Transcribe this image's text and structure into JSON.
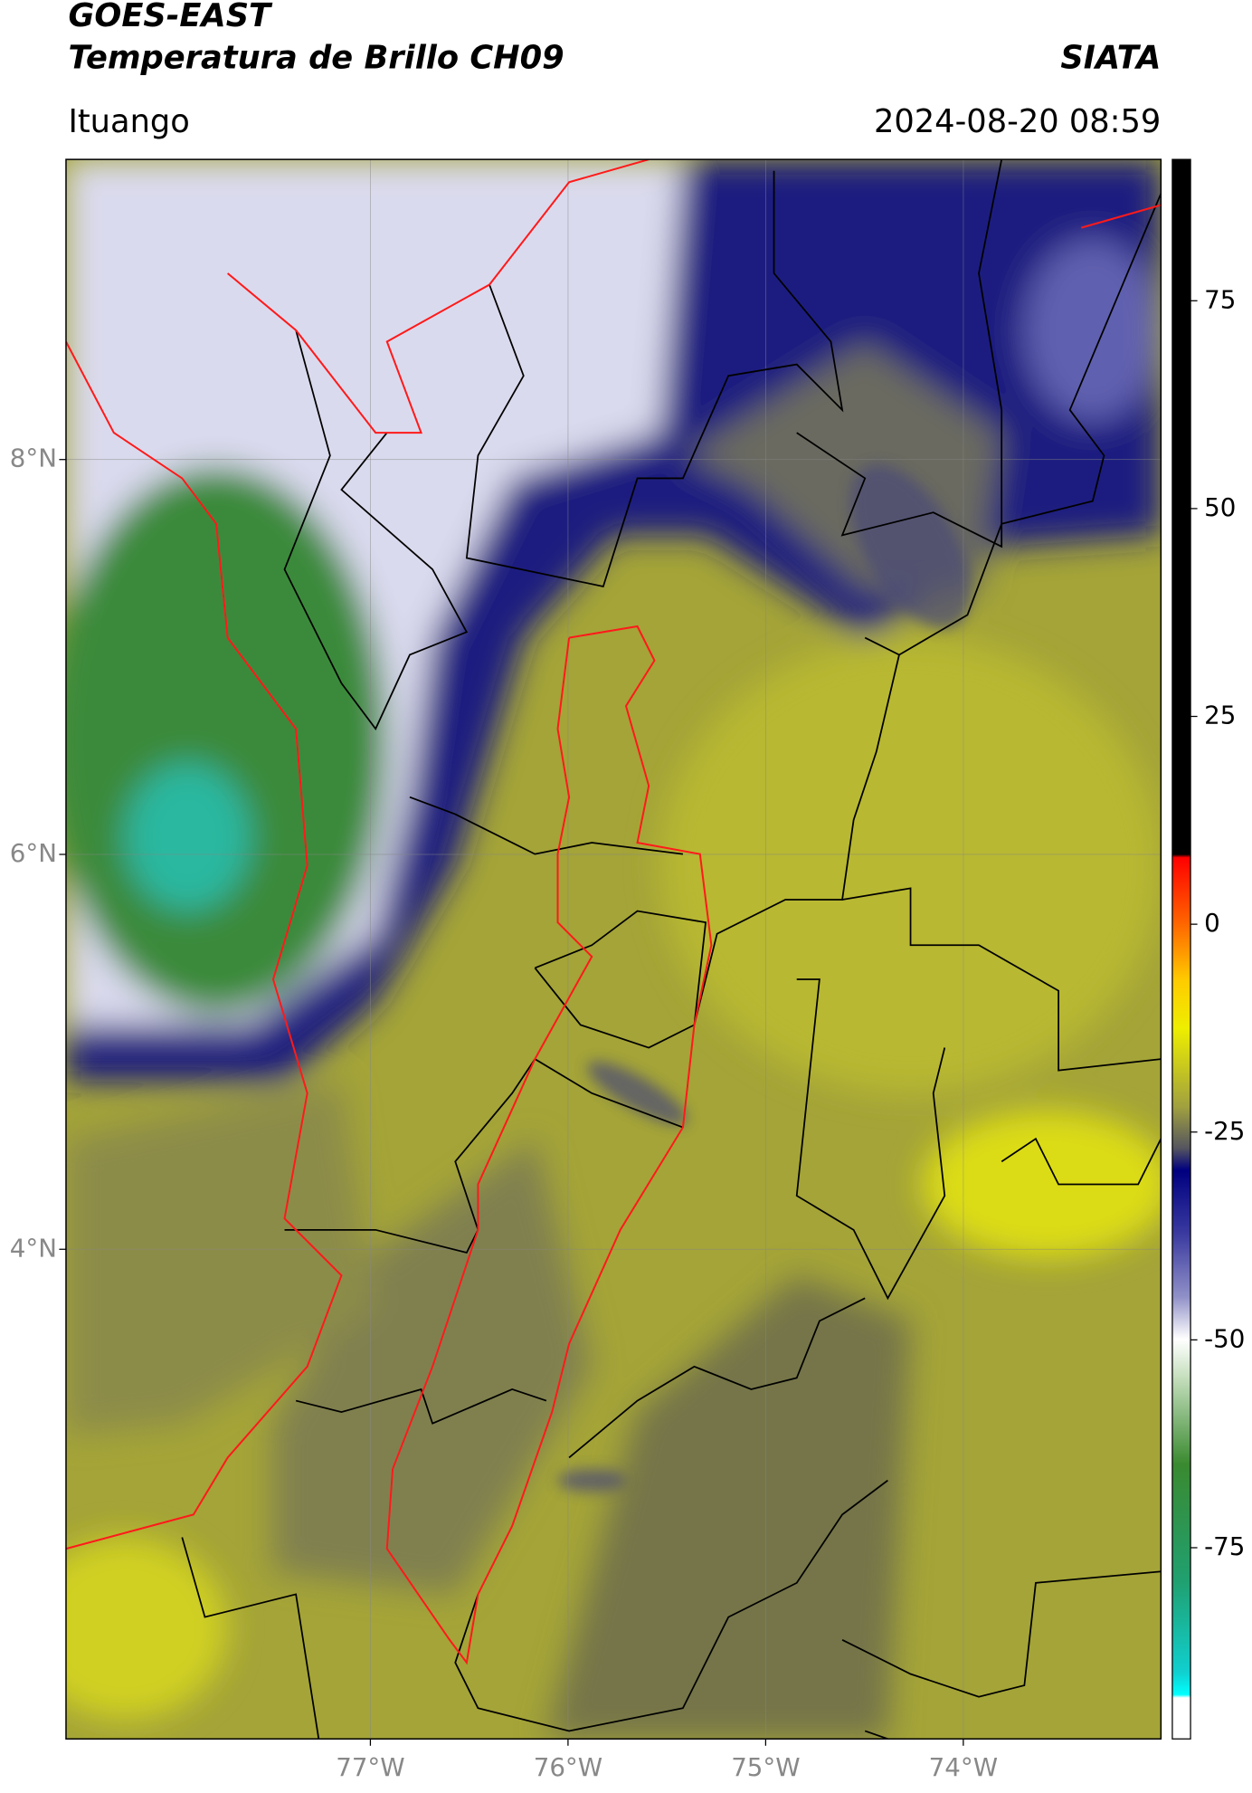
{
  "header": {
    "title_lines": [
      "GOES-EAST",
      "Temperatura de Brillo CH09"
    ],
    "source": "SIATA",
    "location": "Ituango",
    "timestamp": "2024-08-20 08:59"
  },
  "map": {
    "lonlim": [
      -78.54,
      -73.0
    ],
    "latlim": [
      1.52,
      9.52
    ],
    "xticks": [
      {
        "value": -77,
        "label": "77°W"
      },
      {
        "value": -76,
        "label": "76°W"
      },
      {
        "value": -75,
        "label": "75°W"
      },
      {
        "value": -74,
        "label": "74°W"
      }
    ],
    "yticks": [
      {
        "value": 8,
        "label": "8°N"
      },
      {
        "value": 6,
        "label": "6°N"
      },
      {
        "value": 4,
        "label": "4°N"
      }
    ],
    "grid": true
  },
  "colorbar": {
    "lim": [
      -98,
      92
    ],
    "ticks": [
      -75,
      -50,
      -25,
      0,
      25,
      50,
      75
    ]
  }
}
